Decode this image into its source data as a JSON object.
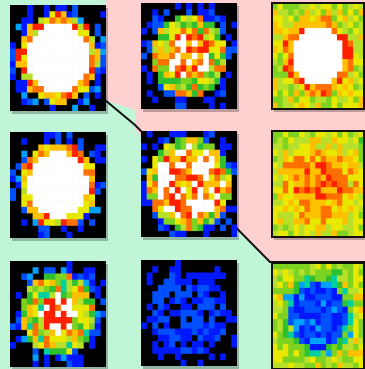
{
  "layout_title": "",
  "colors": {
    "background_pink": "#FFD0D0",
    "background_mint": "#C0F5D8",
    "divider": "#111111",
    "scale_low": "#000000",
    "scale_saturated": "#FFFFFF"
  },
  "grid": {
    "columns": 3,
    "rows": 3,
    "tiles": [
      {
        "id": "r1c1",
        "row": 1,
        "col": 1,
        "region": "mint",
        "bg": "#000000",
        "kind": "white-disc",
        "radius": 0.42,
        "ring": "jagged",
        "seed": 11
      },
      {
        "id": "r1c2",
        "row": 1,
        "col": 2,
        "region": "pink",
        "bg": "#000000",
        "kind": "hot-blob",
        "radius": 0.4,
        "seed": 23
      },
      {
        "id": "r1c3",
        "row": 1,
        "col": 3,
        "region": "pink",
        "bg": "#7ED321",
        "kind": "white-disc-field",
        "radius": 0.3,
        "seed": 37
      },
      {
        "id": "r2c1",
        "row": 2,
        "col": 1,
        "region": "mint",
        "bg": "#000000",
        "kind": "white-disc",
        "radius": 0.4,
        "ring": "rough",
        "seed": 41
      },
      {
        "id": "r2c2",
        "row": 2,
        "col": 2,
        "region": "mint",
        "bg": "#000000",
        "kind": "speckled-disc",
        "radius": 0.42,
        "seed": 53
      },
      {
        "id": "r2c3",
        "row": 2,
        "col": 3,
        "region": "pink",
        "bg": "#7ED321",
        "kind": "warm-field",
        "radius": 0.3,
        "seed": 67
      },
      {
        "id": "r3c1",
        "row": 3,
        "col": 1,
        "region": "mint",
        "bg": "#000000",
        "kind": "mixed-blob",
        "radius": 0.4,
        "seed": 71
      },
      {
        "id": "r3c2",
        "row": 3,
        "col": 2,
        "region": "mint",
        "bg": "#000000",
        "kind": "faint-blue",
        "radius": 0.4,
        "seed": 83
      },
      {
        "id": "r3c3",
        "row": 3,
        "col": 3,
        "region": "mint",
        "bg": "#7ED321",
        "kind": "blue-hole-field",
        "radius": 0.34,
        "seed": 97
      }
    ]
  }
}
